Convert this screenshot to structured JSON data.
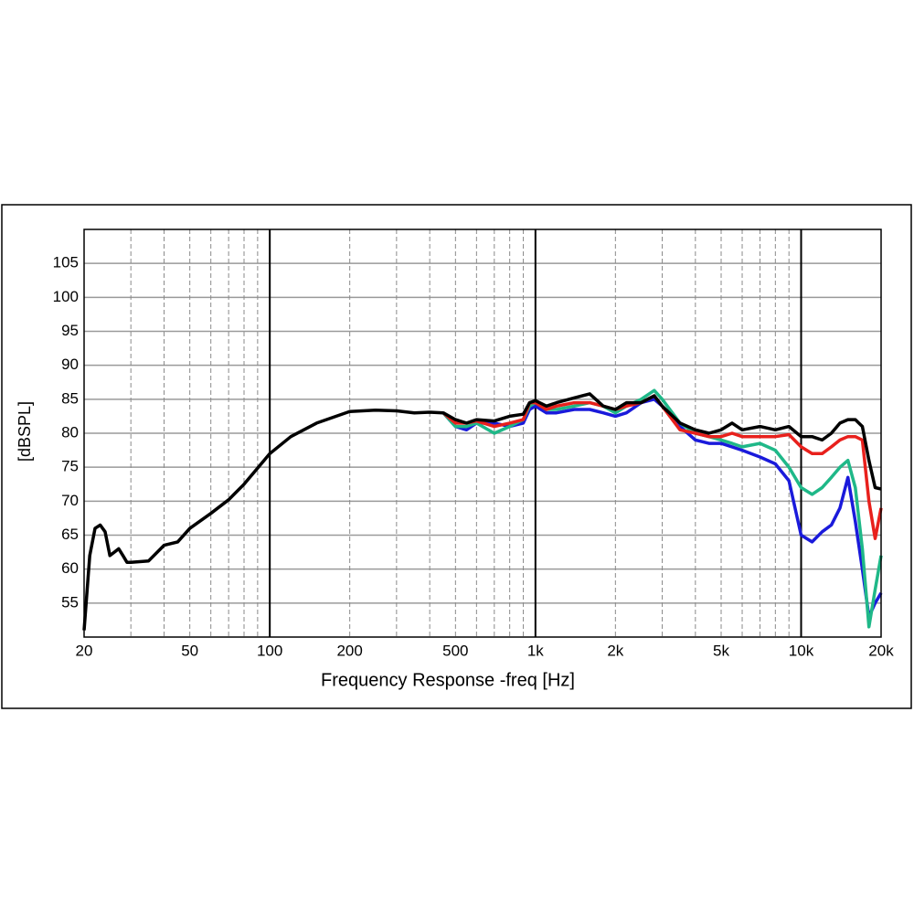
{
  "chart_data": {
    "type": "line",
    "xscale": "log",
    "xlabel": "Frequency Response -freq [Hz]",
    "ylabel": "[dBSPL]",
    "xlim": [
      20,
      20000
    ],
    "ylim": [
      50,
      110
    ],
    "xticks": [
      20,
      50,
      100,
      200,
      500,
      {
        "value": 1000,
        "label": "1k"
      },
      {
        "value": 2000,
        "label": "2k"
      },
      {
        "value": 5000,
        "label": "5k"
      },
      {
        "value": 10000,
        "label": "10k"
      },
      {
        "value": 20000,
        "label": "20k"
      }
    ],
    "xgrid_minor": [
      30,
      40,
      60,
      70,
      80,
      90,
      300,
      400,
      600,
      700,
      800,
      900,
      3000,
      4000,
      6000,
      7000,
      8000,
      9000
    ],
    "xgrid_major": [
      100,
      1000,
      10000
    ],
    "yticks": [
      55,
      60,
      65,
      70,
      75,
      80,
      85,
      90,
      95,
      100,
      105
    ],
    "grid": true,
    "x": [
      20,
      21,
      22,
      23,
      24,
      25,
      26,
      27,
      28,
      29,
      30,
      35,
      40,
      45,
      50,
      60,
      70,
      80,
      100,
      120,
      150,
      200,
      250,
      300,
      350,
      400,
      450,
      500,
      550,
      600,
      700,
      800,
      900,
      950,
      1000,
      1100,
      1200,
      1400,
      1600,
      1800,
      2000,
      2200,
      2500,
      2800,
      3000,
      3500,
      4000,
      4500,
      5000,
      5500,
      6000,
      7000,
      8000,
      9000,
      10000,
      11000,
      12000,
      13000,
      14000,
      15000,
      16000,
      17000,
      18000,
      19000,
      20000
    ],
    "series": [
      {
        "color": "#1a1adb",
        "values": [
          null,
          null,
          null,
          null,
          null,
          null,
          null,
          null,
          null,
          null,
          null,
          null,
          null,
          null,
          null,
          null,
          null,
          null,
          null,
          null,
          null,
          null,
          null,
          null,
          null,
          null,
          83,
          81,
          80.5,
          81.5,
          81.5,
          81,
          81.5,
          83.5,
          84,
          83,
          83,
          83.5,
          83.5,
          83,
          82.5,
          83,
          84.5,
          85,
          84,
          81,
          79,
          78.5,
          78.5,
          78,
          77.5,
          76.5,
          75.5,
          73,
          65,
          64,
          65.5,
          66.5,
          69,
          73.5,
          67,
          60,
          53,
          55,
          56.5
        ]
      },
      {
        "color": "#1fb888",
        "values": [
          null,
          null,
          null,
          null,
          null,
          null,
          null,
          null,
          null,
          null,
          null,
          null,
          null,
          null,
          null,
          null,
          null,
          null,
          null,
          null,
          null,
          null,
          null,
          null,
          null,
          null,
          83,
          81,
          81,
          81.5,
          80,
          81,
          82,
          84,
          84.5,
          83.5,
          83.5,
          84,
          84.5,
          84,
          83,
          84,
          85,
          86.3,
          85,
          81.5,
          80,
          79.5,
          79,
          78.5,
          78,
          78.5,
          77.5,
          75,
          72,
          71,
          72,
          73.5,
          75,
          76,
          72,
          63,
          51.5,
          57,
          62
        ]
      },
      {
        "color": "#e8201c",
        "values": [
          null,
          null,
          null,
          null,
          null,
          null,
          null,
          null,
          null,
          null,
          null,
          null,
          null,
          null,
          null,
          null,
          null,
          null,
          null,
          null,
          null,
          null,
          null,
          null,
          null,
          null,
          83,
          81.5,
          81.5,
          81.8,
          81,
          81.5,
          82,
          84.5,
          84.5,
          83.5,
          84,
          84.5,
          84.5,
          84,
          83.5,
          84,
          84.5,
          85.5,
          84,
          80.5,
          80,
          79.5,
          79.5,
          80,
          79.5,
          79.5,
          79.5,
          79.8,
          78,
          77,
          77,
          78,
          79,
          79.5,
          79.5,
          79,
          70,
          64.5,
          69
        ]
      },
      {
        "color": "#000000",
        "values": [
          51,
          62,
          66,
          66.5,
          65.5,
          62,
          62.5,
          63,
          62,
          61,
          61,
          61.2,
          63.5,
          64,
          66,
          68.2,
          70.2,
          72.5,
          77,
          79.5,
          81.5,
          83.2,
          83.4,
          83.3,
          83,
          83.1,
          83,
          82,
          81.5,
          82,
          81.8,
          82.5,
          82.8,
          84.5,
          84.8,
          84,
          84.5,
          85.2,
          85.8,
          84,
          83.5,
          84.5,
          84.5,
          85.5,
          84,
          81.5,
          80.5,
          80,
          80.5,
          81.5,
          80.5,
          81,
          80.5,
          81,
          79.5,
          79.5,
          79,
          80,
          81.5,
          82,
          82,
          81,
          76,
          72,
          71.8
        ]
      }
    ]
  }
}
